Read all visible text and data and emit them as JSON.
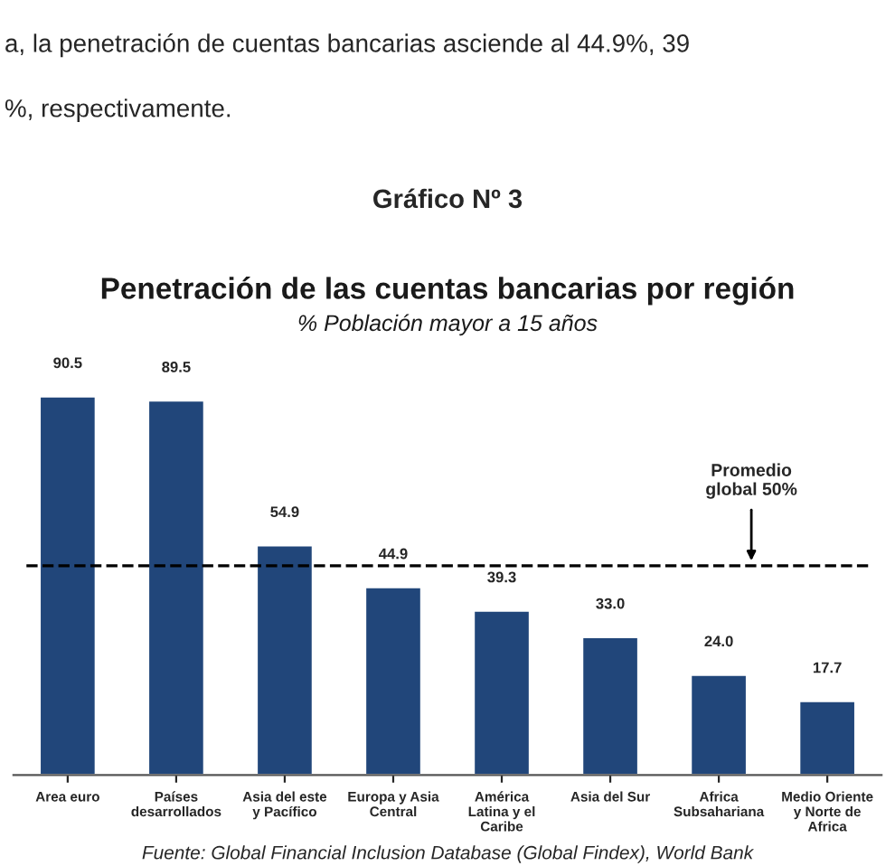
{
  "chart_data": {
    "type": "bar",
    "title": "Penetración de las cuentas bancarias por región",
    "subtitle": "% Población mayor a 15 años",
    "categories": [
      "Area euro",
      "Países\ndesarrollados",
      "Asia del este\ny Pacífico",
      "Europa y Asia\nCentral",
      "América\nLatina y el\nCaribe",
      "Asia del Sur",
      "Africa\nSubsahariana",
      "Medio Oriente\ny Norte de\nAfrica"
    ],
    "values": [
      90.5,
      89.5,
      54.9,
      44.9,
      39.3,
      33.0,
      24.0,
      17.7
    ],
    "value_labels": [
      "90.5",
      "89.5",
      "54.9",
      "44.9",
      "39.3",
      "33.0",
      "24.0",
      "17.7"
    ],
    "color": "#21467a",
    "ref_lines": [
      {
        "axis": "y",
        "value": 50,
        "label": "Promedio\nglobal 50%",
        "color": "#000000",
        "line_style": "dashed"
      }
    ],
    "annotations": [
      "a, la penetración de cuentas bancarias asciende al 44.9%, 39",
      "%, respectivamente.",
      "Gráfico Nº 3",
      "Fuente: Global Financial Inclusion Database (Global Findex), World Bank"
    ],
    "grid": false,
    "legend": false,
    "tick_labels": "x"
  }
}
